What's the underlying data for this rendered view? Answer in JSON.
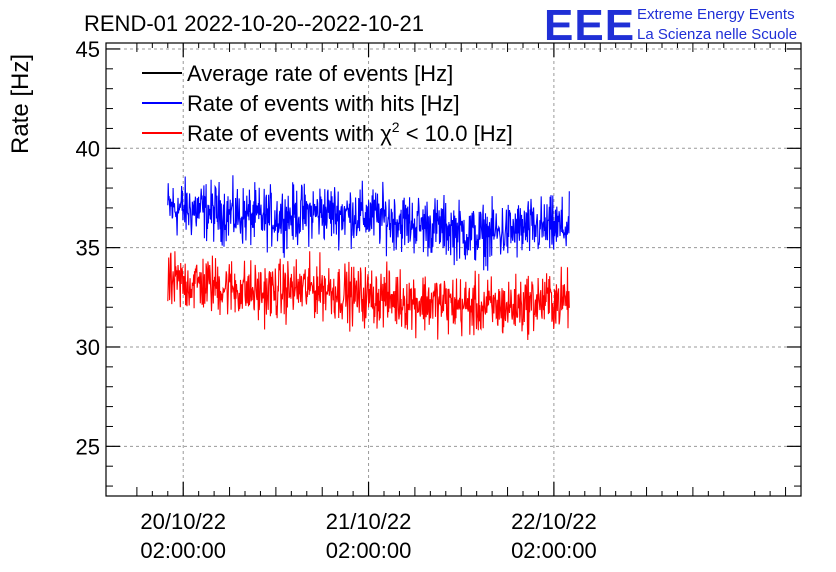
{
  "chart_data": {
    "type": "line",
    "title": "REND-01 2022-10-20--2022-10-21",
    "ylabel": "Rate [Hz]",
    "xlabel": "",
    "ylim": [
      22.5,
      45.3
    ],
    "yticks": [
      25,
      30,
      35,
      40,
      45
    ],
    "ytick_labels": [
      "25",
      "30",
      "35",
      "40",
      "45"
    ],
    "x_unit": "hours since 20/10/22 02:00:00",
    "xlim": [
      -10,
      80
    ],
    "xticks": [
      0,
      24,
      48
    ],
    "xtick_labels": [
      {
        "date": "20/10/22",
        "time": "02:00:00"
      },
      {
        "date": "21/10/22",
        "time": "02:00:00"
      },
      {
        "date": "22/10/22",
        "time": "02:00:00"
      }
    ],
    "grid": true,
    "legend_position": "top-left",
    "series": [
      {
        "name": "Average rate of events [Hz]",
        "color": "#000000",
        "x": [],
        "values": []
      },
      {
        "name": "Rate of events with hits [Hz]",
        "color": "#0000ff",
        "x": [
          -2,
          2,
          6,
          10,
          14,
          18,
          22,
          26,
          30,
          34,
          38,
          42,
          46,
          50
        ],
        "values": [
          37.0,
          36.9,
          36.7,
          36.5,
          36.6,
          36.8,
          36.7,
          36.5,
          36.2,
          36.0,
          35.6,
          35.8,
          36.0,
          36.0
        ],
        "noise_range": 2.2
      },
      {
        "name": "Rate of events with χ² < 10.0 [Hz]",
        "color": "#ff0000",
        "x": [
          -2,
          2,
          6,
          10,
          14,
          18,
          22,
          26,
          30,
          34,
          38,
          42,
          46,
          50
        ],
        "values": [
          33.2,
          33.2,
          33.0,
          32.7,
          32.9,
          33.0,
          32.6,
          32.5,
          32.3,
          32.2,
          32.0,
          32.0,
          32.3,
          32.4
        ],
        "noise_range": 2.2
      }
    ]
  },
  "legend": {
    "entries": [
      {
        "text": "Average rate of events [Hz]",
        "color": "#000000"
      },
      {
        "text": "Rate of events with hits [Hz]",
        "color": "#0000ff"
      },
      {
        "prefix": "Rate of events with ",
        "symbol": "χ",
        "superscript": "2",
        "suffix": " < 10.0 [Hz]",
        "color": "#ff0000"
      }
    ]
  },
  "logo": {
    "letters": "EEE",
    "line1": "Extreme Energy Events",
    "line2": "La Scienza nelle Scuole",
    "color": "#1f2fd6"
  }
}
